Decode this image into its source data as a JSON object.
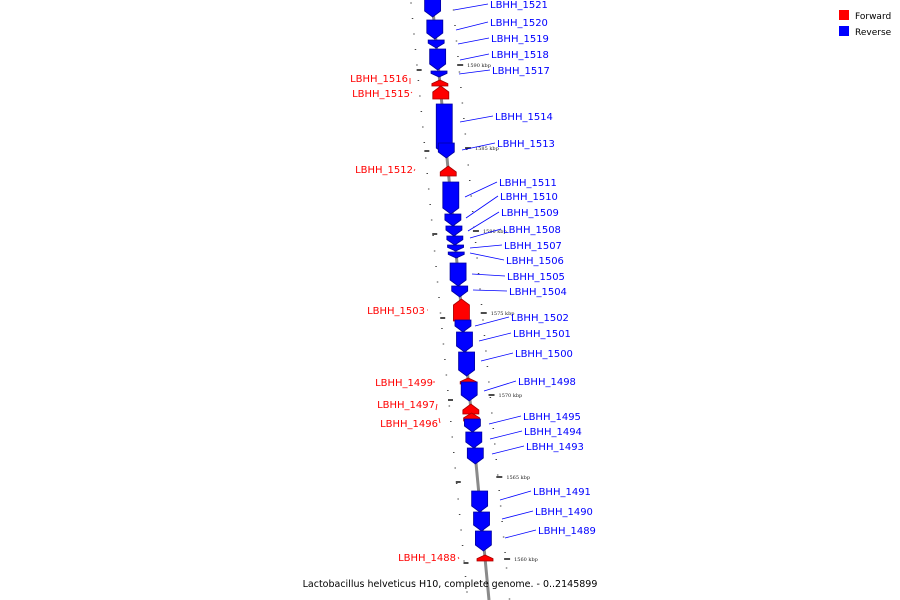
{
  "title": "Lactobacillus helveticus H10, complete genome. - 0..2145899",
  "legend": {
    "items": [
      {
        "label": "Forward",
        "color": "#ff0000"
      },
      {
        "label": "Reverse",
        "color": "#0000ff"
      }
    ]
  },
  "colors": {
    "forward": "#ff0000",
    "reverse": "#0000ff",
    "backbone": "#888888"
  },
  "tick_labels": [
    "1590 kbp",
    "1585 kbp",
    "1580 kbp",
    "1575 kbp",
    "1570 kbp",
    "1565 kbp",
    "1560 kbp"
  ],
  "genes": [
    {
      "name": "LBHH_1521",
      "strand": "reverse"
    },
    {
      "name": "LBHH_1520",
      "strand": "reverse"
    },
    {
      "name": "LBHH_1519",
      "strand": "reverse"
    },
    {
      "name": "LBHH_1518",
      "strand": "reverse"
    },
    {
      "name": "LBHH_1517",
      "strand": "reverse"
    },
    {
      "name": "LBHH_1516",
      "strand": "forward"
    },
    {
      "name": "LBHH_1515",
      "strand": "forward"
    },
    {
      "name": "LBHH_1514",
      "strand": "reverse"
    },
    {
      "name": "LBHH_1513",
      "strand": "reverse"
    },
    {
      "name": "LBHH_1512",
      "strand": "forward"
    },
    {
      "name": "LBHH_1511",
      "strand": "reverse"
    },
    {
      "name": "LBHH_1510",
      "strand": "reverse"
    },
    {
      "name": "LBHH_1509",
      "strand": "reverse"
    },
    {
      "name": "LBHH_1508",
      "strand": "reverse"
    },
    {
      "name": "LBHH_1507",
      "strand": "reverse"
    },
    {
      "name": "LBHH_1506",
      "strand": "reverse"
    },
    {
      "name": "LBHH_1505",
      "strand": "reverse"
    },
    {
      "name": "LBHH_1504",
      "strand": "reverse"
    },
    {
      "name": "LBHH_1503",
      "strand": "forward"
    },
    {
      "name": "LBHH_1502",
      "strand": "reverse"
    },
    {
      "name": "LBHH_1501",
      "strand": "reverse"
    },
    {
      "name": "LBHH_1500",
      "strand": "reverse"
    },
    {
      "name": "LBHH_1499",
      "strand": "forward"
    },
    {
      "name": "LBHH_1498",
      "strand": "reverse"
    },
    {
      "name": "LBHH_1497",
      "strand": "forward"
    },
    {
      "name": "LBHH_1496",
      "strand": "forward"
    },
    {
      "name": "LBHH_1495",
      "strand": "reverse"
    },
    {
      "name": "LBHH_1494",
      "strand": "reverse"
    },
    {
      "name": "LBHH_1493",
      "strand": "reverse"
    },
    {
      "name": "LBHH_1491",
      "strand": "reverse"
    },
    {
      "name": "LBHH_1490",
      "strand": "reverse"
    },
    {
      "name": "LBHH_1489",
      "strand": "reverse"
    },
    {
      "name": "LBHH_1488",
      "strand": "forward"
    }
  ]
}
